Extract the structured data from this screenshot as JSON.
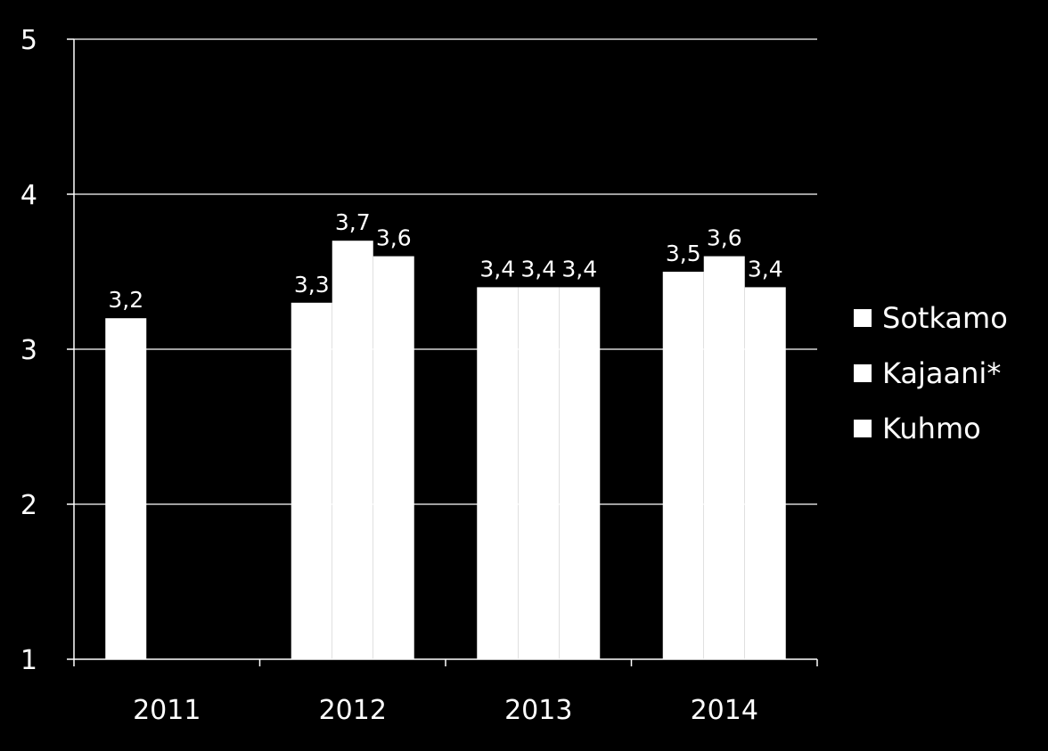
{
  "chart_data": {
    "type": "bar",
    "categories": [
      "2011",
      "2012",
      "2013",
      "2014"
    ],
    "series": [
      {
        "name": "Sotkamo",
        "values": [
          3.2,
          3.3,
          3.4,
          3.5
        ],
        "labels": [
          "3,2",
          "3,3",
          "3,4",
          "3,5"
        ]
      },
      {
        "name": "Kajaani*",
        "values": [
          null,
          3.7,
          3.4,
          3.6
        ],
        "labels": [
          "",
          "3,7",
          "3,4",
          "3,6"
        ]
      },
      {
        "name": "Kuhmo",
        "values": [
          null,
          3.6,
          3.4,
          3.4
        ],
        "labels": [
          "",
          "3,6",
          "3,4",
          "3,4"
        ]
      }
    ],
    "yticks": [
      "1",
      "2",
      "3",
      "4",
      "5"
    ],
    "ylim": [
      1,
      5
    ],
    "grid": true,
    "legend_position": "right",
    "colors": {
      "background": "#000000",
      "bars": "#ffffff",
      "text": "#ffffff",
      "grid": "#ffffff"
    }
  }
}
